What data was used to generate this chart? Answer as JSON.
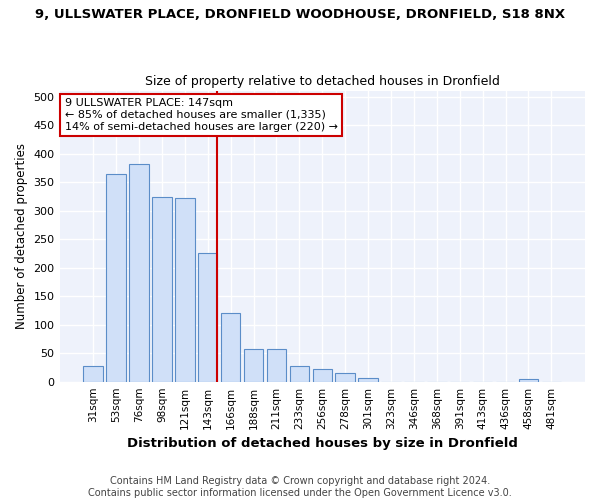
{
  "title_line1": "9, ULLSWATER PLACE, DRONFIELD WOODHOUSE, DRONFIELD, S18 8NX",
  "title_line2": "Size of property relative to detached houses in Dronfield",
  "xlabel": "Distribution of detached houses by size in Dronfield",
  "ylabel": "Number of detached properties",
  "categories": [
    "31sqm",
    "53sqm",
    "76sqm",
    "98sqm",
    "121sqm",
    "143sqm",
    "166sqm",
    "188sqm",
    "211sqm",
    "233sqm",
    "256sqm",
    "278sqm",
    "301sqm",
    "323sqm",
    "346sqm",
    "368sqm",
    "391sqm",
    "413sqm",
    "436sqm",
    "458sqm",
    "481sqm"
  ],
  "values": [
    28,
    365,
    382,
    324,
    322,
    225,
    120,
    58,
    58,
    28,
    22,
    15,
    6,
    0,
    0,
    0,
    0,
    0,
    0,
    5,
    0
  ],
  "bar_color": "#d0e0f8",
  "bar_edge_color": "#5b8dc8",
  "reference_line_index": 5,
  "annotation_line1": "9 ULLSWATER PLACE: 147sqm",
  "annotation_line2": "← 85% of detached houses are smaller (1,335)",
  "annotation_line3": "14% of semi-detached houses are larger (220) →",
  "ylim": [
    0,
    510
  ],
  "yticks": [
    0,
    50,
    100,
    150,
    200,
    250,
    300,
    350,
    400,
    450,
    500
  ],
  "footer_line1": "Contains HM Land Registry data © Crown copyright and database right 2024.",
  "footer_line2": "Contains public sector information licensed under the Open Government Licence v3.0.",
  "bg_color": "#ffffff",
  "plot_bg_color": "#eef2fb",
  "grid_color": "#ffffff",
  "annotation_box_color": "#ffffff",
  "annotation_box_edge": "#cc0000",
  "ref_line_color": "#cc0000",
  "title1_fontsize": 9.5,
  "title2_fontsize": 9.0,
  "ylabel_fontsize": 8.5,
  "xlabel_fontsize": 9.5,
  "tick_fontsize": 8.0,
  "xtick_fontsize": 7.5,
  "annotation_fontsize": 8.0,
  "footer_fontsize": 7.0
}
